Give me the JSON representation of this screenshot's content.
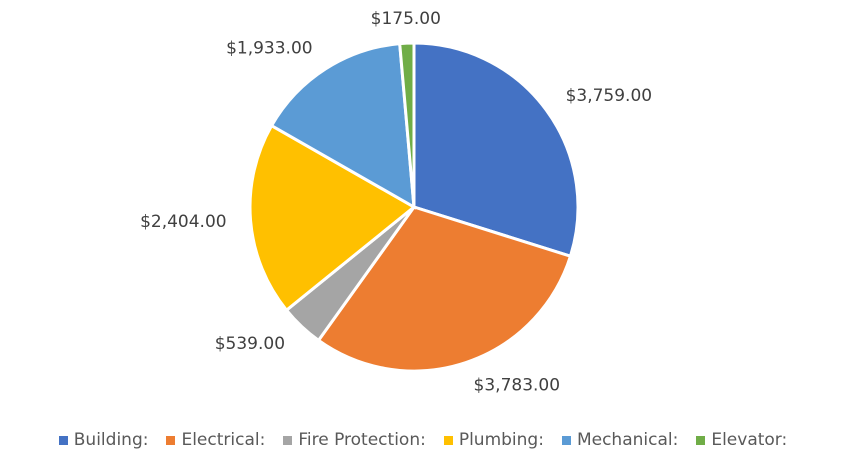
{
  "chart_data": {
    "type": "pie",
    "categories": [
      "Building:",
      "Electrical:",
      "Fire Protection:",
      "Plumbing:",
      "Mechanical:",
      "Elevator:"
    ],
    "values": [
      3759,
      3783,
      539,
      2404,
      1933,
      175
    ],
    "value_labels": [
      "$3,759.00",
      "$3,783.00",
      "$539.00",
      "$2,404.00",
      "$1,933.00",
      "$175.00"
    ],
    "colors": [
      "#4472c4",
      "#ed7d31",
      "#a5a5a5",
      "#ffc000",
      "#5b9bd5",
      "#70ad47"
    ],
    "legend": "bottom"
  }
}
